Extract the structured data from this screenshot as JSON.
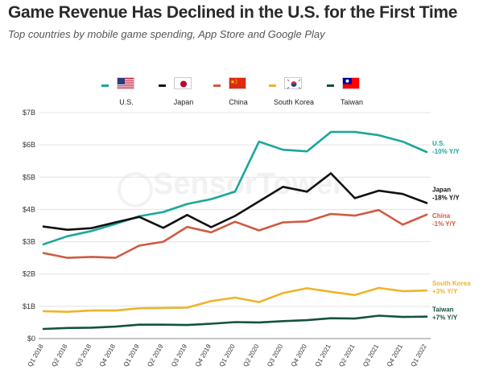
{
  "header": {
    "title": "Game Revenue Has Declined in the U.S. for the First Time",
    "subtitle": "Top countries by mobile game spending, App Store and Google Play"
  },
  "watermark": "SensorTower",
  "legend": [
    {
      "label": "U.S.",
      "color": "#1aa79a",
      "flag": "us-flag-icon"
    },
    {
      "label": "Japan",
      "color": "#111111",
      "flag": "japan-flag-icon"
    },
    {
      "label": "China",
      "color": "#cf5a42",
      "flag": "china-flag-icon"
    },
    {
      "label": "South Korea",
      "color": "#eeb42b",
      "flag": "south-korea-flag-icon"
    },
    {
      "label": "Taiwan",
      "color": "#14523f",
      "flag": "taiwan-flag-icon"
    }
  ],
  "chart_data": {
    "type": "line",
    "categories": [
      "Q1 2018",
      "Q2 2018",
      "Q3 2018",
      "Q4 2018",
      "Q1 2019",
      "Q2 2019",
      "Q3 2019",
      "Q4 2019",
      "Q1 2020",
      "Q2 2020",
      "Q3 2020",
      "Q4 2020",
      "Q1 2021",
      "Q2 2021",
      "Q3 2021",
      "Q4 2021",
      "Q1 2022"
    ],
    "ylim": [
      0,
      7
    ],
    "yticks": [
      {
        "value": 0,
        "label": "$0"
      },
      {
        "value": 1,
        "label": "$1B"
      },
      {
        "value": 2,
        "label": "$2B"
      },
      {
        "value": 3,
        "label": "$3B"
      },
      {
        "value": 4,
        "label": "$4B"
      },
      {
        "value": 5,
        "label": "$5B"
      },
      {
        "value": 6,
        "label": "$6B"
      },
      {
        "value": 7,
        "label": "$7B"
      }
    ],
    "grid": true,
    "series": [
      {
        "name": "U.S.",
        "change": "-10% Y/Y",
        "color": "#1aa79a",
        "values": [
          2.92,
          3.17,
          3.33,
          3.55,
          3.79,
          3.92,
          4.17,
          4.32,
          4.55,
          6.1,
          5.85,
          5.8,
          6.4,
          6.4,
          6.3,
          6.1,
          5.78
        ]
      },
      {
        "name": "Japan",
        "change": "-18% Y/Y",
        "color": "#111111",
        "values": [
          3.47,
          3.37,
          3.42,
          3.6,
          3.77,
          3.43,
          3.83,
          3.45,
          3.8,
          4.25,
          4.7,
          4.55,
          5.12,
          4.35,
          4.58,
          4.48,
          4.2
        ]
      },
      {
        "name": "China",
        "change": "-1% Y/Y",
        "color": "#cf5a42",
        "values": [
          2.65,
          2.5,
          2.53,
          2.5,
          2.88,
          3.0,
          3.46,
          3.29,
          3.62,
          3.35,
          3.6,
          3.63,
          3.86,
          3.81,
          3.98,
          3.53,
          3.84
        ]
      },
      {
        "name": "South Korea",
        "change": "+3% Y/Y",
        "color": "#eeb42b",
        "values": [
          0.85,
          0.83,
          0.87,
          0.87,
          0.94,
          0.95,
          0.96,
          1.16,
          1.27,
          1.13,
          1.41,
          1.56,
          1.45,
          1.35,
          1.57,
          1.47,
          1.49
        ]
      },
      {
        "name": "Taiwan",
        "change": "+7% Y/Y",
        "color": "#14523f",
        "values": [
          0.3,
          0.33,
          0.34,
          0.37,
          0.43,
          0.43,
          0.42,
          0.46,
          0.51,
          0.5,
          0.54,
          0.57,
          0.63,
          0.62,
          0.71,
          0.67,
          0.68
        ]
      }
    ]
  }
}
